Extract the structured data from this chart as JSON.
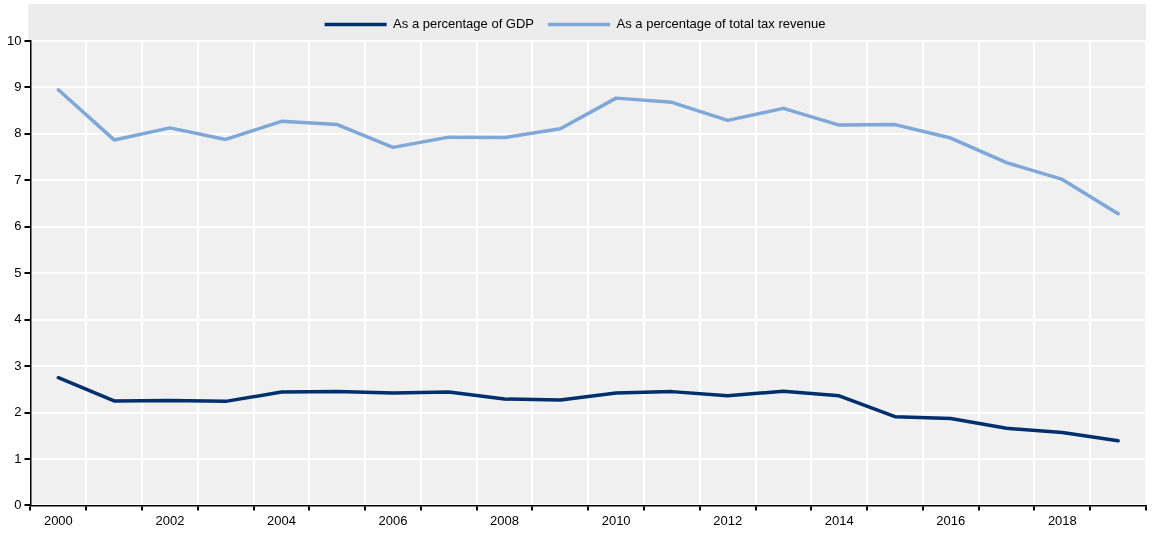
{
  "chart_data": {
    "type": "line",
    "categories": [
      "2000",
      null,
      "2002",
      null,
      "2004",
      null,
      "2006",
      null,
      "2008",
      null,
      "2010",
      null,
      "2012",
      null,
      "2014",
      null,
      "2016",
      null,
      "2018",
      null
    ],
    "series": [
      {
        "name": "As a percentage of GDP",
        "color": "#002f6c",
        "values": [
          2.75,
          2.25,
          2.26,
          2.24,
          2.44,
          2.45,
          2.42,
          2.44,
          2.29,
          2.27,
          2.42,
          2.45,
          2.36,
          2.46,
          2.36,
          1.91,
          1.87,
          1.66,
          1.57,
          1.39
        ]
      },
      {
        "name": "As a percentage of total tax revenue",
        "color": "#7fa8d9",
        "values": [
          8.95,
          7.87,
          8.13,
          7.88,
          8.27,
          8.2,
          7.71,
          7.93,
          7.92,
          8.11,
          8.77,
          8.68,
          8.29,
          8.55,
          8.19,
          8.2,
          7.91,
          7.38,
          7.02,
          6.28
        ]
      }
    ],
    "ylim": [
      0,
      10
    ],
    "yticks": [
      0,
      1,
      2,
      3,
      4,
      5,
      6,
      7,
      8,
      9,
      10
    ],
    "grid": true,
    "legend": "top",
    "marker": "none",
    "line_style": "solid"
  }
}
